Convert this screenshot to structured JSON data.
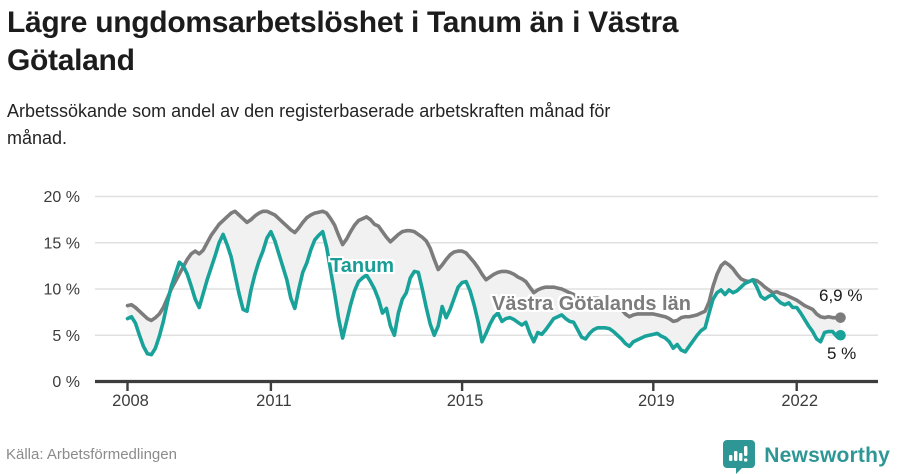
{
  "header": {
    "title": "Lägre ungdomsarbetslöshet i Tanum än i Västra Götaland",
    "subtitle": "Arbetssökande som andel av den registerbaserade arbetskraften månad för månad."
  },
  "footer": {
    "source": "Källa: Arbetsförmedlingen",
    "brand": "Newsworthy",
    "brand_color": "#2e9795"
  },
  "chart_data": {
    "type": "line",
    "title": "Arbetssökande som andel av den registerbaserade arbetskraften månad för månad",
    "x_unit": "month",
    "start_year": 2008,
    "start_month": 1,
    "end_year": 2022,
    "end_month": 12,
    "ylim": [
      0,
      20
    ],
    "grid": "horizontal",
    "fill_between_color": "#f1f1f1",
    "axis_color": "#3d3d3d",
    "grid_color": "#e0e0e0",
    "y_ticks": [
      {
        "value": 0,
        "label": "0 %"
      },
      {
        "value": 5,
        "label": "5 %"
      },
      {
        "value": 10,
        "label": "10 %"
      },
      {
        "value": 15,
        "label": "15 %"
      },
      {
        "value": 20,
        "label": "20 %"
      }
    ],
    "x_ticks": [
      {
        "year": 2008,
        "label": "2008"
      },
      {
        "year": 2011,
        "label": "2011"
      },
      {
        "year": 2015,
        "label": "2015"
      },
      {
        "year": 2019,
        "label": "2019"
      },
      {
        "year": 2022,
        "label": "2022"
      }
    ],
    "series": [
      {
        "name": "Västra Götalands län",
        "color": "#7c7c7c",
        "end_label": "6,9 %",
        "end_value": 6.9,
        "values": [
          8.2,
          8.3,
          8.0,
          7.6,
          7.2,
          6.8,
          6.6,
          6.9,
          7.3,
          8.0,
          9.0,
          10.0,
          10.8,
          11.6,
          12.4,
          13.2,
          13.8,
          14.1,
          13.8,
          14.2,
          15.0,
          15.8,
          16.4,
          17.0,
          17.4,
          17.8,
          18.2,
          18.4,
          18.0,
          17.6,
          17.2,
          17.5,
          17.9,
          18.2,
          18.4,
          18.4,
          18.2,
          18.0,
          17.6,
          17.2,
          16.8,
          16.4,
          16.1,
          16.6,
          17.2,
          17.7,
          18.0,
          18.2,
          18.3,
          18.4,
          18.2,
          17.6,
          16.9,
          15.8,
          14.8,
          15.4,
          16.2,
          16.9,
          17.4,
          17.6,
          17.8,
          17.5,
          17.0,
          16.8,
          16.2,
          15.6,
          15.1,
          15.5,
          15.9,
          16.2,
          16.3,
          16.3,
          16.2,
          15.9,
          15.6,
          15.2,
          14.4,
          13.2,
          12.1,
          12.6,
          13.2,
          13.7,
          14.0,
          14.1,
          14.1,
          13.9,
          13.4,
          12.9,
          12.3,
          11.6,
          11.0,
          11.3,
          11.6,
          11.8,
          11.9,
          11.9,
          11.8,
          11.6,
          11.3,
          11.1,
          10.8,
          10.2,
          9.6,
          9.9,
          10.1,
          10.2,
          10.2,
          10.2,
          10.1,
          10.0,
          9.8,
          9.6,
          9.4,
          9.0,
          8.6,
          8.8,
          9.0,
          9.0,
          9.0,
          8.9,
          8.8,
          8.6,
          8.4,
          8.1,
          7.8,
          7.3,
          7.0,
          7.2,
          7.3,
          7.3,
          7.3,
          7.3,
          7.3,
          7.2,
          7.1,
          7.0,
          6.8,
          6.5,
          6.6,
          6.9,
          7.0,
          7.0,
          7.1,
          7.2,
          7.4,
          7.6,
          8.6,
          10.3,
          11.6,
          12.5,
          12.9,
          12.6,
          12.2,
          11.6,
          11.1,
          10.9,
          10.8,
          11.0,
          10.9,
          10.6,
          10.2,
          9.9,
          9.6,
          9.7,
          9.5,
          9.4,
          9.2,
          9.0,
          8.8,
          8.5,
          8.2,
          8.0,
          7.8,
          7.3,
          7.0,
          6.9,
          7.0,
          6.9,
          6.9,
          6.9
        ]
      },
      {
        "name": "Tanum",
        "color": "#18a29a",
        "end_label": "5 %",
        "end_value": 5.0,
        "values": [
          6.8,
          7.0,
          6.3,
          5.0,
          3.8,
          3.0,
          2.9,
          3.6,
          4.9,
          6.5,
          8.5,
          10.3,
          11.6,
          12.9,
          12.5,
          11.6,
          10.3,
          8.9,
          8.0,
          9.5,
          11.0,
          12.3,
          13.6,
          15.0,
          15.9,
          14.8,
          13.5,
          11.5,
          9.5,
          7.8,
          7.6,
          9.9,
          11.6,
          13.0,
          14.1,
          15.5,
          16.2,
          15.2,
          13.8,
          12.4,
          11.0,
          9.0,
          7.9,
          10.0,
          11.8,
          12.8,
          14.2,
          15.3,
          15.8,
          16.2,
          14.5,
          12.0,
          9.5,
          6.8,
          4.7,
          6.5,
          8.3,
          9.8,
          10.8,
          11.2,
          11.5,
          10.8,
          10.0,
          8.9,
          7.4,
          7.9,
          6.0,
          5.0,
          7.4,
          8.9,
          9.6,
          11.2,
          11.9,
          11.8,
          10.0,
          8.0,
          6.2,
          5.0,
          6.0,
          8.1,
          6.9,
          7.8,
          9.0,
          10.2,
          10.7,
          10.8,
          9.8,
          8.3,
          6.5,
          4.3,
          5.2,
          6.2,
          7.0,
          7.4,
          6.5,
          6.8,
          6.9,
          6.7,
          6.4,
          6.1,
          6.4,
          5.2,
          4.3,
          5.3,
          5.1,
          5.6,
          6.2,
          6.8,
          7.0,
          7.2,
          6.8,
          6.5,
          6.4,
          5.6,
          4.8,
          4.6,
          5.2,
          5.6,
          5.8,
          5.8,
          5.8,
          5.7,
          5.4,
          5.0,
          4.6,
          4.1,
          3.8,
          4.3,
          4.5,
          4.7,
          4.9,
          5.0,
          5.1,
          5.2,
          4.9,
          4.7,
          4.3,
          3.6,
          4.0,
          3.4,
          3.2,
          3.8,
          4.4,
          5.0,
          5.5,
          5.8,
          7.4,
          8.9,
          9.6,
          9.9,
          9.4,
          9.9,
          9.6,
          9.8,
          10.2,
          10.6,
          10.8,
          11.0,
          10.2,
          9.2,
          8.9,
          9.2,
          9.4,
          8.9,
          8.5,
          8.3,
          8.5,
          8.0,
          8.0,
          7.4,
          6.7,
          6.0,
          5.4,
          4.6,
          4.3,
          5.3,
          5.4,
          5.4,
          4.9,
          5.0
        ]
      }
    ]
  }
}
